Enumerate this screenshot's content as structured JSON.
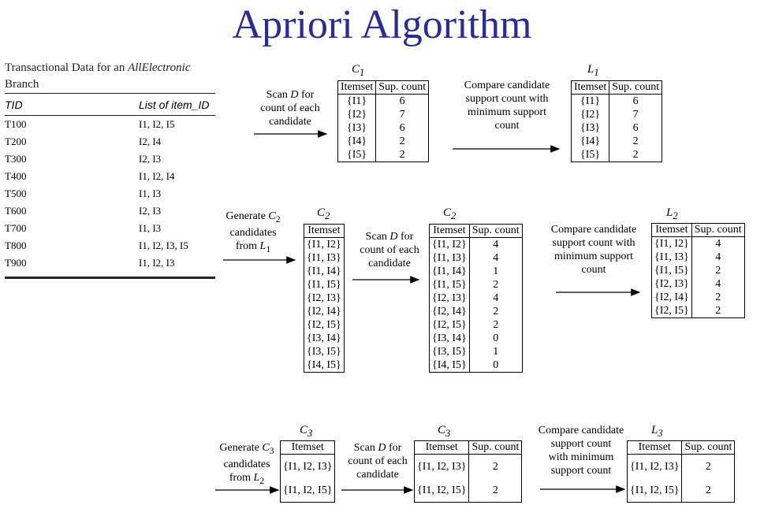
{
  "title": "Apriori Algorithm",
  "transactions": {
    "caption_prefix": "Transactional Data for an ",
    "caption_em": "AllElectronic",
    "caption_suffix": "Branch",
    "headers": [
      "TID",
      "List of item_ID"
    ],
    "rows": [
      [
        "T100",
        "I1, I2, I5"
      ],
      [
        "T200",
        "I2, I4"
      ],
      [
        "T300",
        "I2, I3"
      ],
      [
        "T400",
        "I1, I2, I4"
      ],
      [
        "T500",
        "I1, I3"
      ],
      [
        "T600",
        "I2, I3"
      ],
      [
        "T700",
        "I1, I3"
      ],
      [
        "T800",
        "I1, I2, I3, I5"
      ],
      [
        "T900",
        "I1, I2, I3"
      ]
    ]
  },
  "col_itemset": "Itemset",
  "col_count": "Sup. count",
  "labels": {
    "c1": "C1",
    "l1": "L1",
    "c2a": "C2",
    "c2b": "C2",
    "l2": "L2",
    "c3a": "C3",
    "c3b": "C3",
    "l3": "L3"
  },
  "steps": {
    "scan1": [
      "Scan D for",
      "count of each",
      "candidate"
    ],
    "compare1": [
      "Compare candidate",
      "support count with",
      "minimum support",
      "count"
    ],
    "gen2": [
      "Generate C2",
      "candidates",
      "from L1"
    ],
    "scan2": [
      "Scan D for",
      "count of each",
      "candidate"
    ],
    "compare2": [
      "Compare candidate",
      "support count with",
      "minimum support",
      "count"
    ],
    "gen3": [
      "Generate C3",
      "candidates",
      "from L2"
    ],
    "scan3": [
      "Scan D for",
      "count of each",
      "candidate"
    ],
    "compare3": [
      "Compare candidate",
      "support count",
      "with minimum",
      "support count"
    ]
  },
  "tables": {
    "c1": [
      [
        "{I1}",
        "6"
      ],
      [
        "{I2}",
        "7"
      ],
      [
        "{I3}",
        "6"
      ],
      [
        "{I4}",
        "2"
      ],
      [
        "{I5}",
        "2"
      ]
    ],
    "l1": [
      [
        "{I1}",
        "6"
      ],
      [
        "{I2}",
        "7"
      ],
      [
        "{I3}",
        "6"
      ],
      [
        "{I4}",
        "2"
      ],
      [
        "{I5}",
        "2"
      ]
    ],
    "c2a": [
      "{I1, I2}",
      "{I1, I3}",
      "{I1, I4}",
      "{I1, I5}",
      "{I2, I3}",
      "{I2, I4}",
      "{I2, I5}",
      "{I3, I4}",
      "{I3, I5}",
      "{I4, I5}"
    ],
    "c2b": [
      [
        "{I1, I2}",
        "4"
      ],
      [
        "{I1, I3}",
        "4"
      ],
      [
        "{I1, I4}",
        "1"
      ],
      [
        "{I1, I5}",
        "2"
      ],
      [
        "{I2, I3}",
        "4"
      ],
      [
        "{I2, I4}",
        "2"
      ],
      [
        "{I2, I5}",
        "2"
      ],
      [
        "{I3, I4}",
        "0"
      ],
      [
        "{I3, I5}",
        "1"
      ],
      [
        "{I4, I5}",
        "0"
      ]
    ],
    "l2": [
      [
        "{I1, I2}",
        "4"
      ],
      [
        "{I1, I3}",
        "4"
      ],
      [
        "{I1, I5}",
        "2"
      ],
      [
        "{I2, I3}",
        "4"
      ],
      [
        "{I2, I4}",
        "2"
      ],
      [
        "{I2, I5}",
        "2"
      ]
    ],
    "c3a": [
      "{I1, I2, I3}",
      "{I1, I2, I5}"
    ],
    "c3b": [
      [
        "{I1, I2, I3}",
        "2"
      ],
      [
        "{I1, I2, I5}",
        "2"
      ]
    ],
    "l3": [
      [
        "{I1, I2, I3}",
        "2"
      ],
      [
        "{I1, I2, I5}",
        "2"
      ]
    ]
  }
}
